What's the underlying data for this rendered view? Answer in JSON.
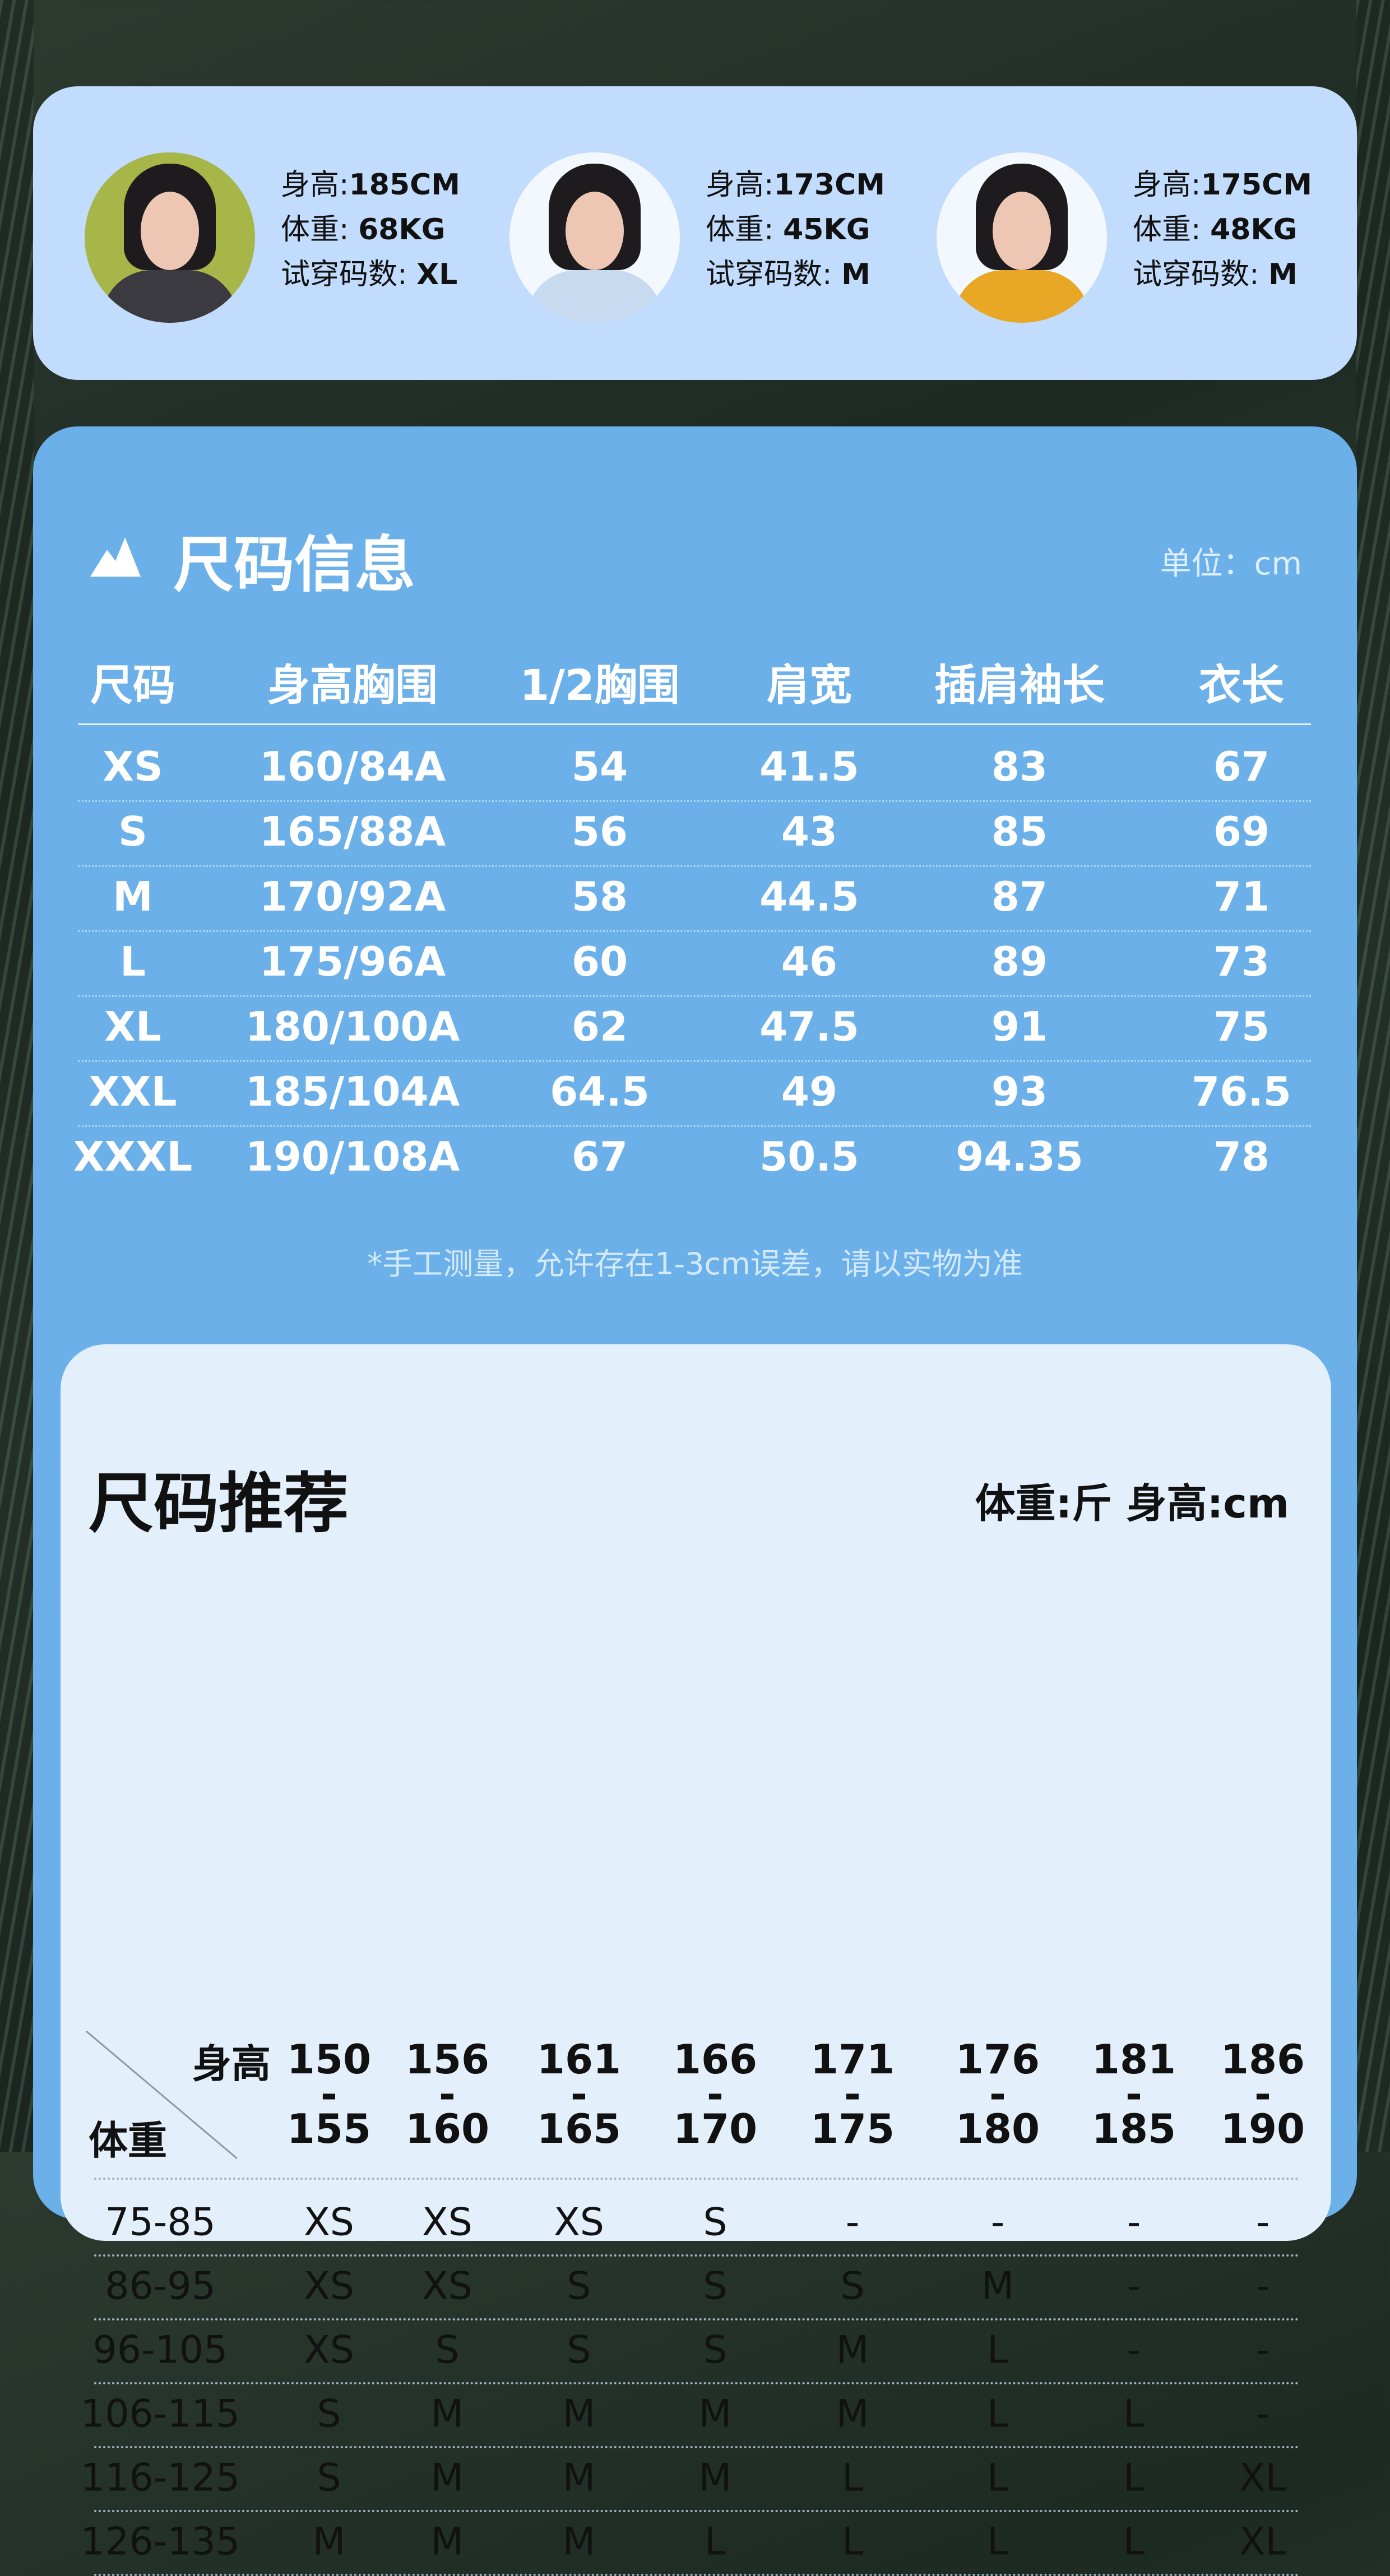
{
  "models": [
    {
      "height_label": "身高:",
      "height": "185CM",
      "weight_label": "体重: ",
      "weight": "68KG",
      "size_label": "试穿码数: ",
      "size": "XL",
      "jacket_color": "#3a3a40",
      "bg_color": "#a7b648"
    },
    {
      "height_label": "身高:",
      "height": "173CM",
      "weight_label": "体重: ",
      "weight": "45KG",
      "size_label": "试穿码数: ",
      "size": "M",
      "jacket_color": "#c8daf0",
      "bg_color": "#f3f8ff"
    },
    {
      "height_label": "身高:",
      "height": "175CM",
      "weight_label": "体重: ",
      "weight": "48KG",
      "size_label": "试穿码数: ",
      "size": "M",
      "jacket_color": "#e8a825",
      "bg_color": "#f3f8ff"
    }
  ],
  "size_info": {
    "title": "尺码信息",
    "icon": "mountain-icon",
    "unit": "单位：cm",
    "headers": [
      "尺码",
      "身高胸围",
      "1/2胸围",
      "肩宽",
      "插肩袖长",
      "衣长"
    ],
    "rows": [
      [
        "XS",
        "160/84A",
        "54",
        "41.5",
        "83",
        "67"
      ],
      [
        "S",
        "165/88A",
        "56",
        "43",
        "85",
        "69"
      ],
      [
        "M",
        "170/92A",
        "58",
        "44.5",
        "87",
        "71"
      ],
      [
        "L",
        "175/96A",
        "60",
        "46",
        "89",
        "73"
      ],
      [
        "XL",
        "180/100A",
        "62",
        "47.5",
        "91",
        "75"
      ],
      [
        "XXL",
        "185/104A",
        "64.5",
        "49",
        "93",
        "76.5"
      ],
      [
        "XXXL",
        "190/108A",
        "67",
        "50.5",
        "94.35",
        "78"
      ]
    ],
    "note": "*手工测量，允许存在1-3cm误差，请以实物为准"
  },
  "recommend": {
    "title": "尺码推荐",
    "units": "体重:斤  身高:cm",
    "corner_top": "身高",
    "corner_bottom": "体重",
    "heights": [
      [
        "150",
        "155"
      ],
      [
        "156",
        "160"
      ],
      [
        "161",
        "165"
      ],
      [
        "166",
        "170"
      ],
      [
        "171",
        "175"
      ],
      [
        "176",
        "180"
      ],
      [
        "181",
        "185"
      ],
      [
        "186",
        "190"
      ]
    ],
    "rows": [
      {
        "weight": "75-85",
        "sizes": [
          "XS",
          "XS",
          "XS",
          "S",
          "-",
          "-",
          "-",
          "-"
        ]
      },
      {
        "weight": "86-95",
        "sizes": [
          "XS",
          "XS",
          "S",
          "S",
          "S",
          "M",
          "-",
          "-"
        ]
      },
      {
        "weight": "96-105",
        "sizes": [
          "XS",
          "S",
          "S",
          "S",
          "M",
          "L",
          "-",
          "-"
        ]
      },
      {
        "weight": "106-115",
        "sizes": [
          "S",
          "M",
          "M",
          "M",
          "M",
          "L",
          "L",
          "-"
        ]
      },
      {
        "weight": "116-125",
        "sizes": [
          "S",
          "M",
          "M",
          "M",
          "L",
          "L",
          "L",
          "XL"
        ]
      },
      {
        "weight": "126-135",
        "sizes": [
          "M",
          "M",
          "M",
          "L",
          "L",
          "L",
          "L",
          "XL"
        ]
      }
    ]
  },
  "colors": {
    "panel_blue": "#6cb0ea",
    "top_card": "#c2dcfd",
    "inner_card": "#e3f0fc"
  }
}
